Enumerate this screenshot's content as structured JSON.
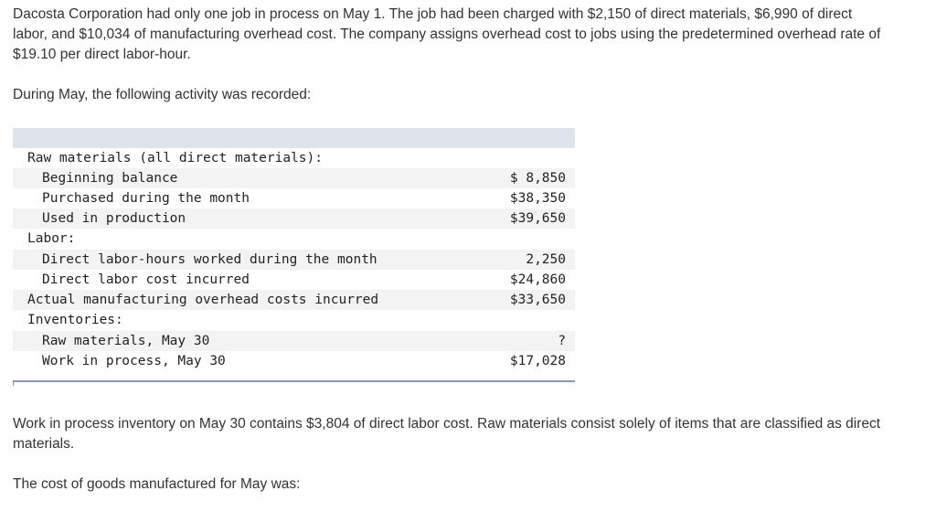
{
  "intro": "Dacosta Corporation had only one job in process on May 1. The job had been charged with $2,150 of direct materials, $6,990 of direct labor, and $10,034 of manufacturing overhead cost. The company assigns overhead cost to jobs using the predetermined overhead rate of $19.10 per direct labor-hour.",
  "during_text": "During May, the following activity was recorded:",
  "table": {
    "rows": [
      {
        "label": "Raw materials (all direct materials):",
        "value": ""
      },
      {
        "label": "Beginning balance",
        "value": "$ 8,850"
      },
      {
        "label": "Purchased during the month",
        "value": "$38,350"
      },
      {
        "label": "Used in production",
        "value": "$39,650"
      },
      {
        "label": "Labor:",
        "value": ""
      },
      {
        "label": "Direct labor-hours worked during the month",
        "value": "2,250"
      },
      {
        "label": "Direct labor cost incurred",
        "value": "$24,860"
      },
      {
        "label": "Actual manufacturing overhead costs incurred",
        "value": "$33,650"
      },
      {
        "label": "Inventories:",
        "value": ""
      },
      {
        "label": "Raw materials, May 30",
        "value": "?"
      },
      {
        "label": "Work in process, May 30",
        "value": "$17,028"
      }
    ]
  },
  "note": "Work in process inventory on May 30 contains $3,804 of direct labor cost. Raw materials consist solely of items that are classified as direct materials.",
  "question": "The cost of goods manufactured for May was:"
}
